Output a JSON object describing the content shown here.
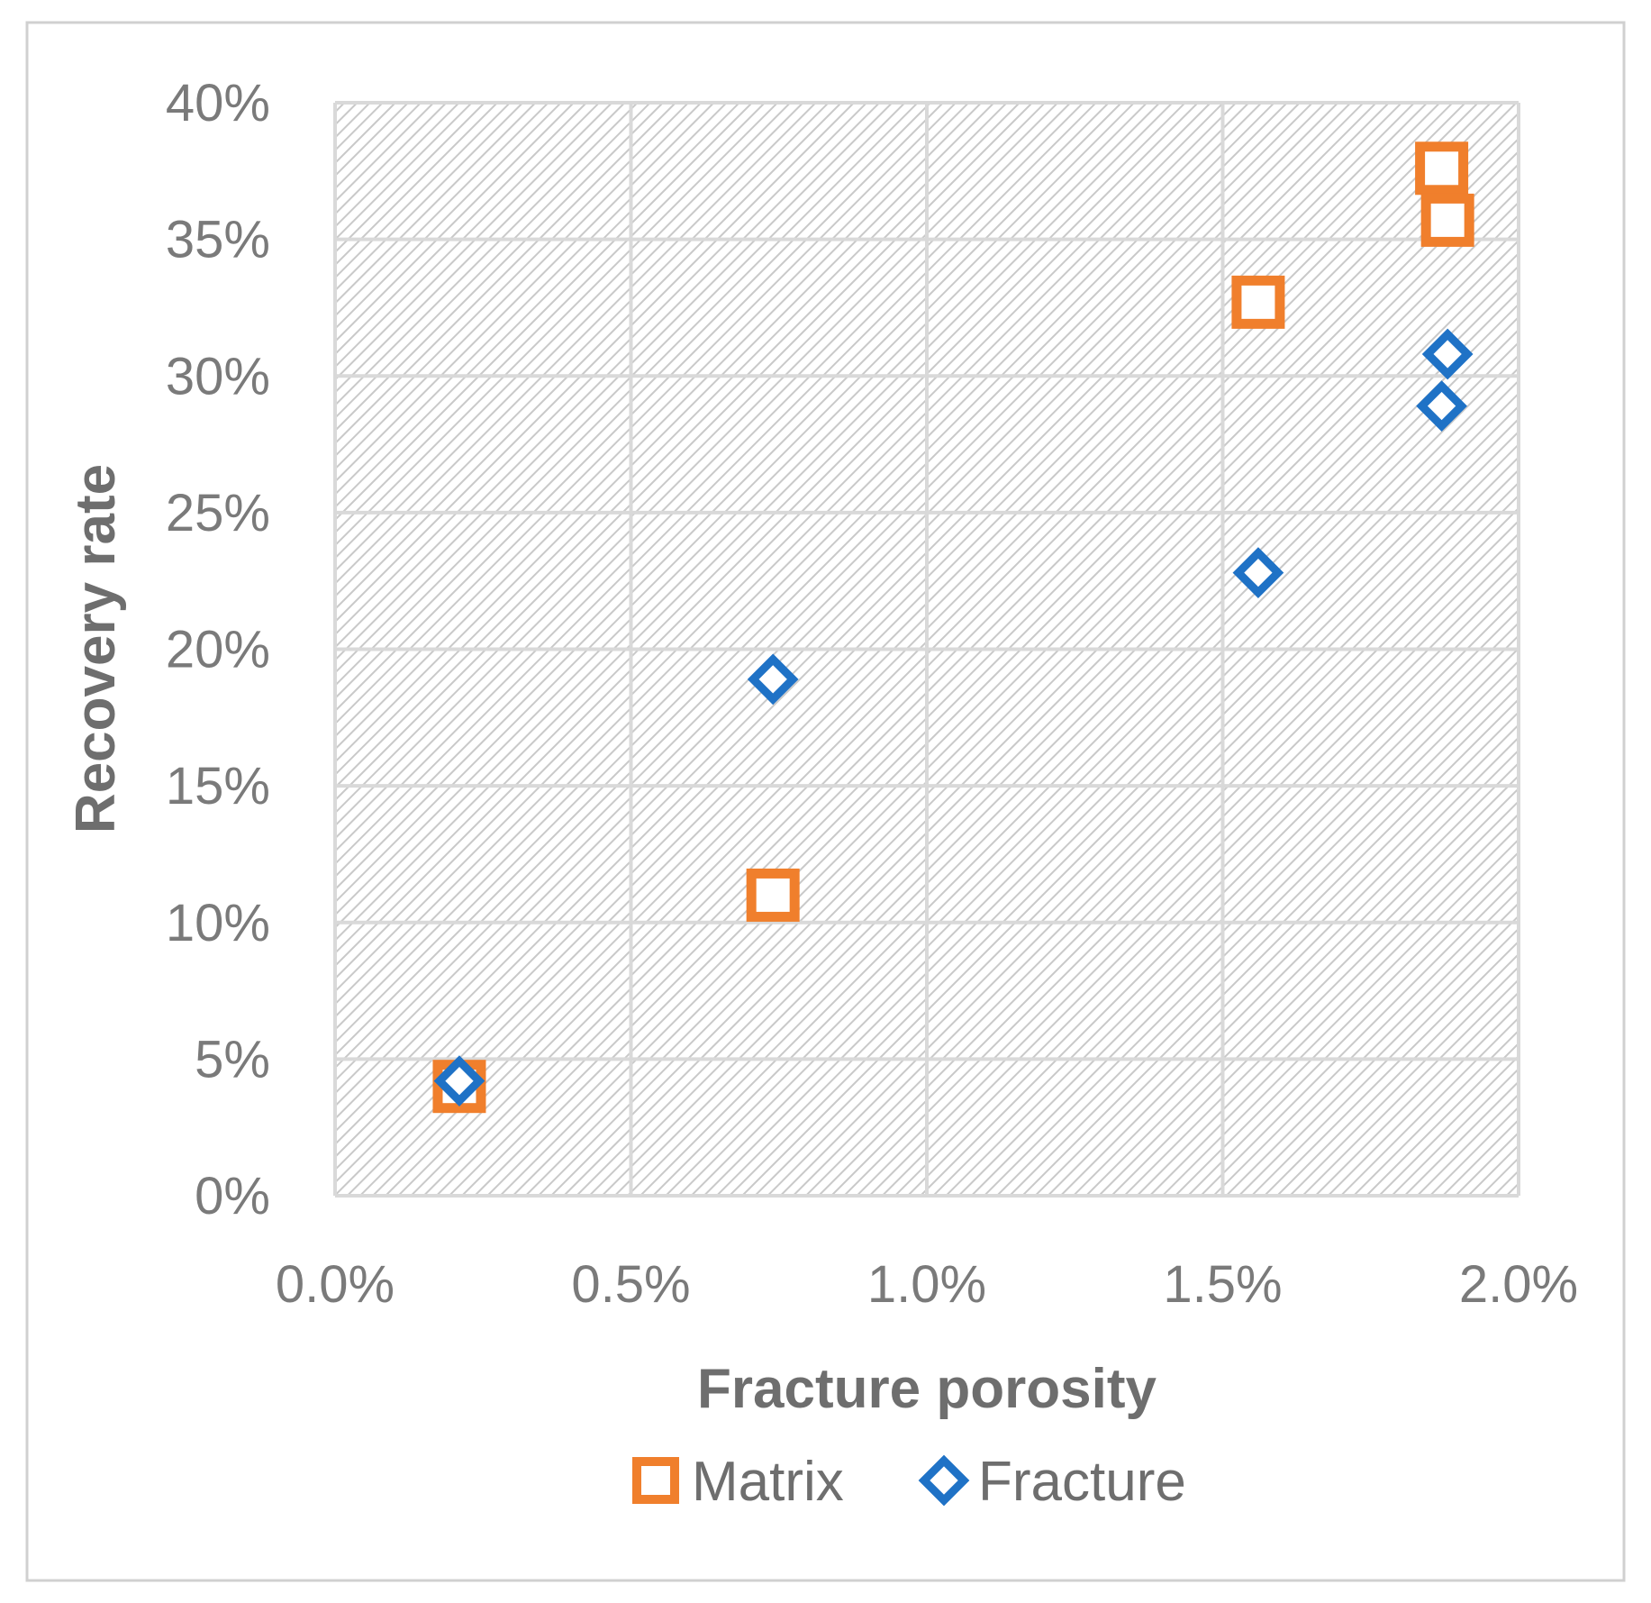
{
  "colors": {
    "matrix": "#f07f2c",
    "fracture": "#1f72c6",
    "grid": "#d9d9d9",
    "hatch": "#c9c9c9",
    "text": "#7a7a7a",
    "frame": "#d0d0d0"
  },
  "chart_data": {
    "type": "scatter",
    "title": "",
    "xlabel": "Fracture porosity",
    "ylabel": "Recovery rate",
    "xlim": [
      0.0,
      2.0
    ],
    "ylim": [
      0,
      40
    ],
    "x_unit": "%",
    "y_unit": "%",
    "x_ticks": [
      "0.0%",
      "0.5%",
      "1.0%",
      "1.5%",
      "2.0%"
    ],
    "y_ticks": [
      "0%",
      "5%",
      "10%",
      "15%",
      "20%",
      "25%",
      "30%",
      "35%",
      "40%"
    ],
    "grid": true,
    "legend_position": "bottom",
    "series": [
      {
        "name": "Matrix",
        "marker": "square",
        "x": [
          0.21,
          0.74,
          1.56,
          1.87,
          1.88
        ],
        "y": [
          4.0,
          11.0,
          32.7,
          37.6,
          35.7
        ]
      },
      {
        "name": "Fracture",
        "marker": "diamond",
        "x": [
          0.21,
          0.74,
          1.56,
          1.88,
          1.87
        ],
        "y": [
          4.2,
          18.9,
          22.8,
          30.8,
          28.9
        ]
      }
    ]
  }
}
